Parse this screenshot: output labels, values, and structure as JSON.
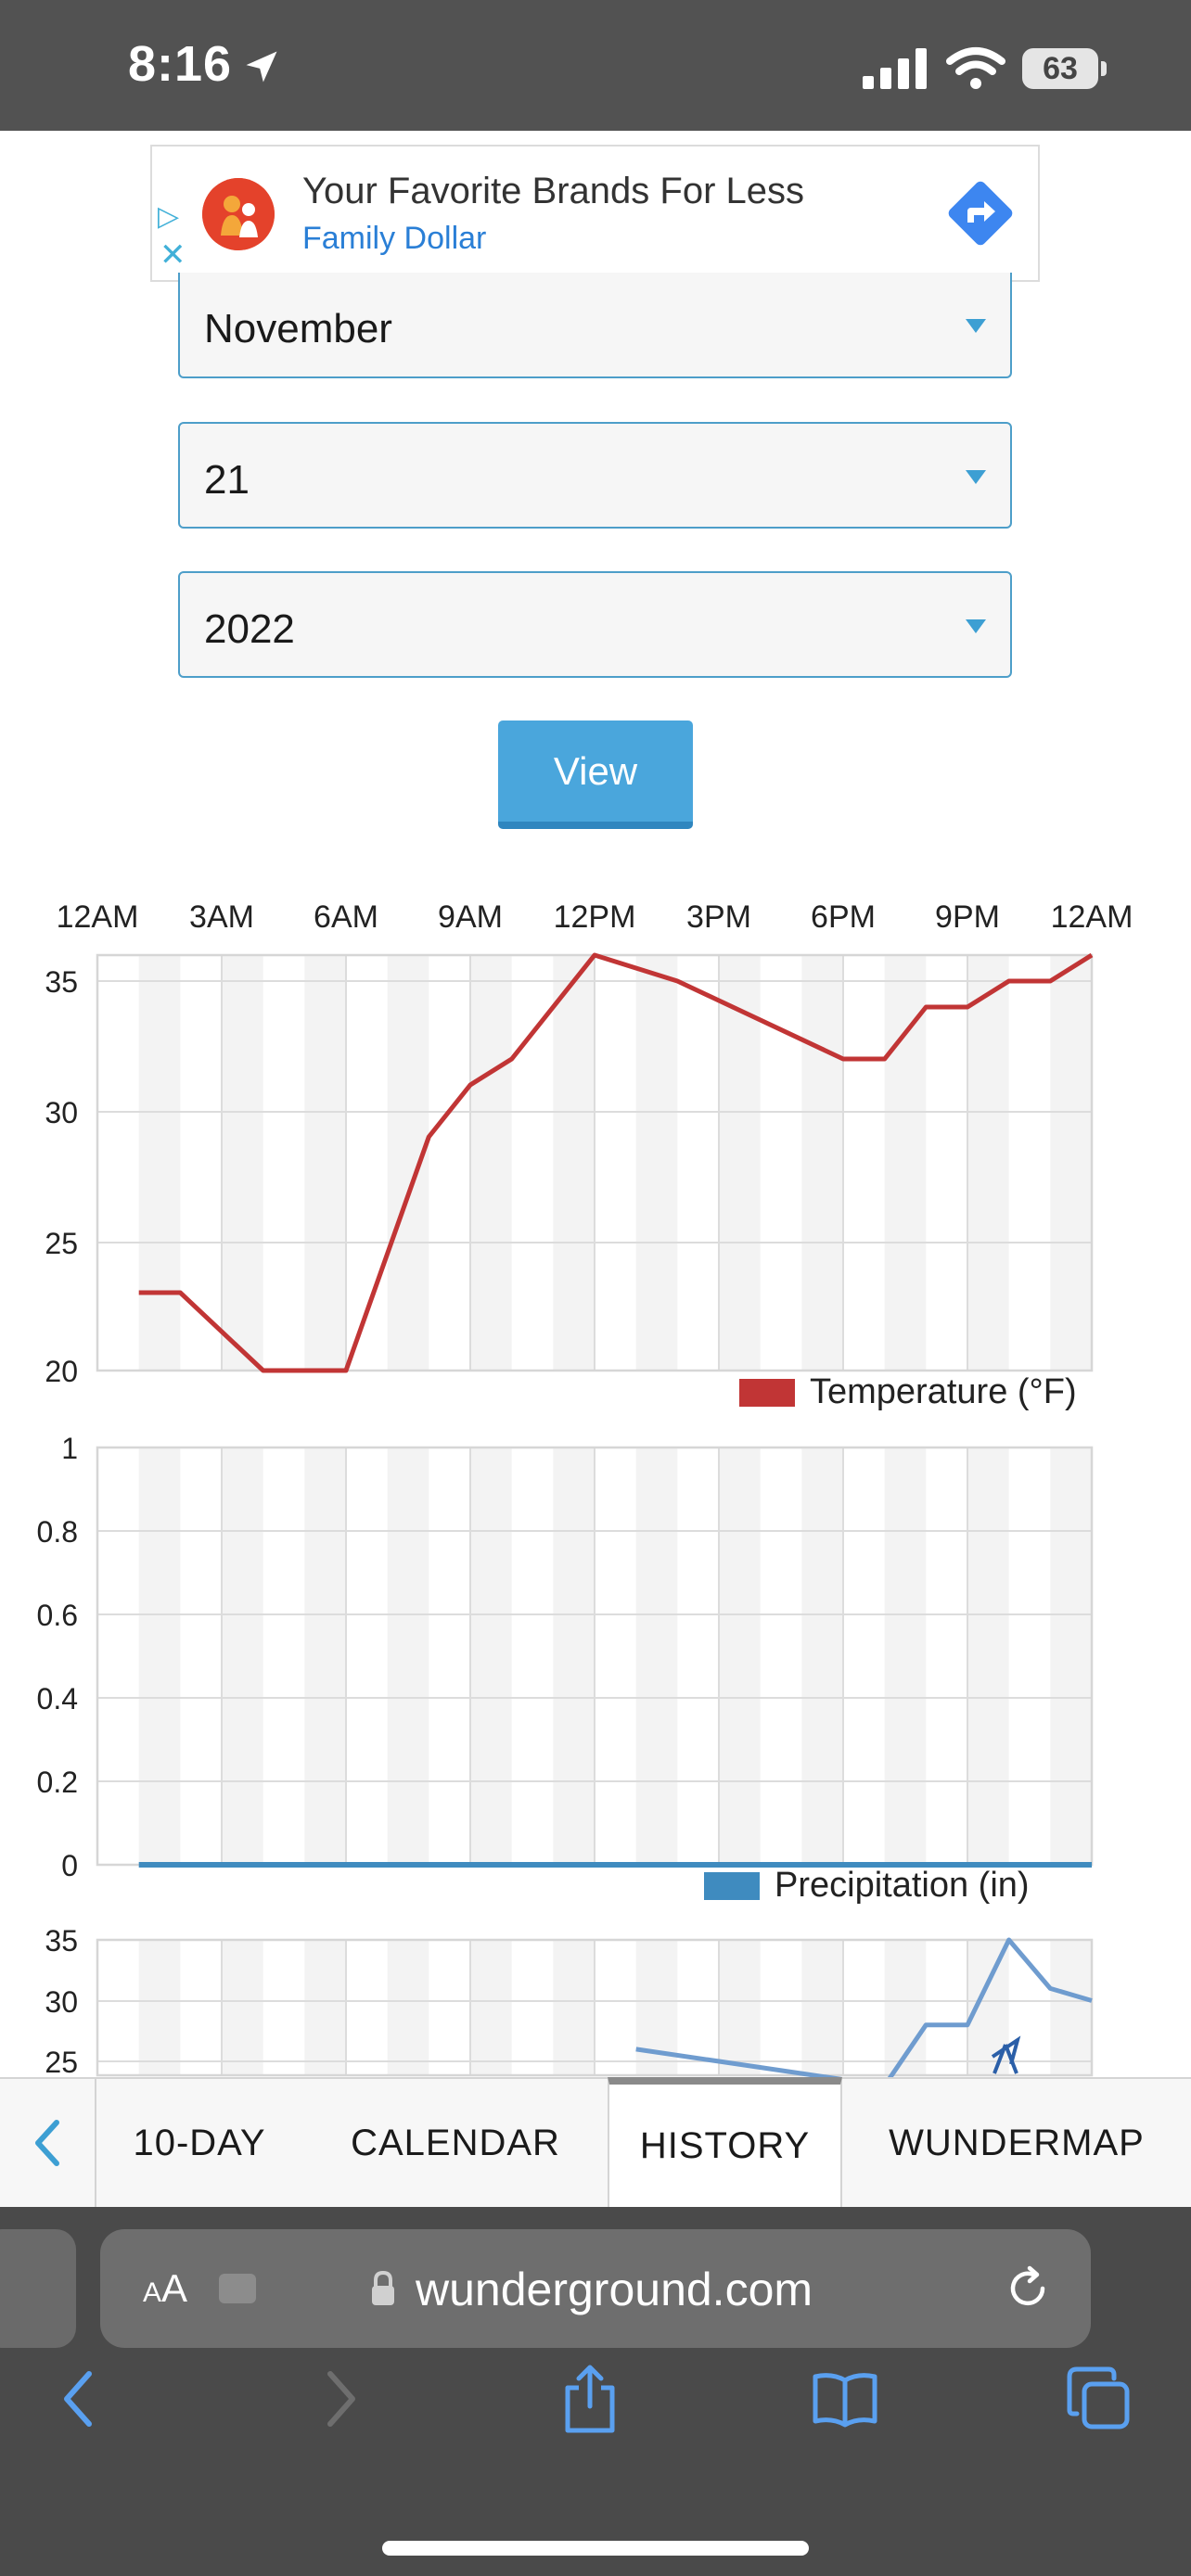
{
  "status_bar": {
    "time": "8:16",
    "battery": "63"
  },
  "ad": {
    "title": "Your Favorite Brands For Less",
    "brand": "Family Dollar"
  },
  "date_selectors": {
    "month": "November",
    "day": "21",
    "year": "2022"
  },
  "view_button": "View",
  "time_axis": [
    "12AM",
    "3AM",
    "6AM",
    "9AM",
    "12PM",
    "3PM",
    "6PM",
    "9PM",
    "12AM"
  ],
  "chart_data": [
    {
      "type": "line",
      "legend": "Temperature (°F)",
      "color": "#c13535",
      "x_hours": [
        1,
        2,
        4,
        5,
        6,
        8,
        9,
        10,
        12,
        14,
        18,
        19,
        20,
        21,
        22,
        23,
        24
      ],
      "values": [
        23,
        23,
        20,
        20,
        20,
        29,
        31,
        32,
        36,
        35,
        32,
        32,
        34,
        34,
        35,
        35,
        36
      ],
      "y_ticks": [
        "35",
        "30",
        "25",
        "20"
      ],
      "ylim": [
        20,
        36
      ]
    },
    {
      "type": "line",
      "legend": "Precipitation (in)",
      "color": "#3f8bbf",
      "x_hours": [
        1,
        24
      ],
      "values": [
        0,
        0
      ],
      "y_ticks": [
        "1",
        "0.8",
        "0.6",
        "0.4",
        "0.2",
        "0"
      ],
      "ylim": [
        0,
        1
      ]
    },
    {
      "type": "line",
      "legend": "",
      "color": "#6f9ccf",
      "x_hours": [
        13,
        19,
        20,
        21,
        22,
        23,
        24
      ],
      "values": [
        26,
        23,
        28,
        28,
        35,
        31,
        30
      ],
      "y_ticks": [
        "35",
        "30",
        "25"
      ],
      "ylim": [
        20,
        36
      ]
    }
  ],
  "tabs": {
    "ten_day": "10-DAY",
    "calendar": "CALENDAR",
    "history": "HISTORY",
    "wundermap": "WUNDERMAP"
  },
  "browser": {
    "aa_small": "A",
    "aa_large": "A",
    "url": "wunderground.com"
  }
}
